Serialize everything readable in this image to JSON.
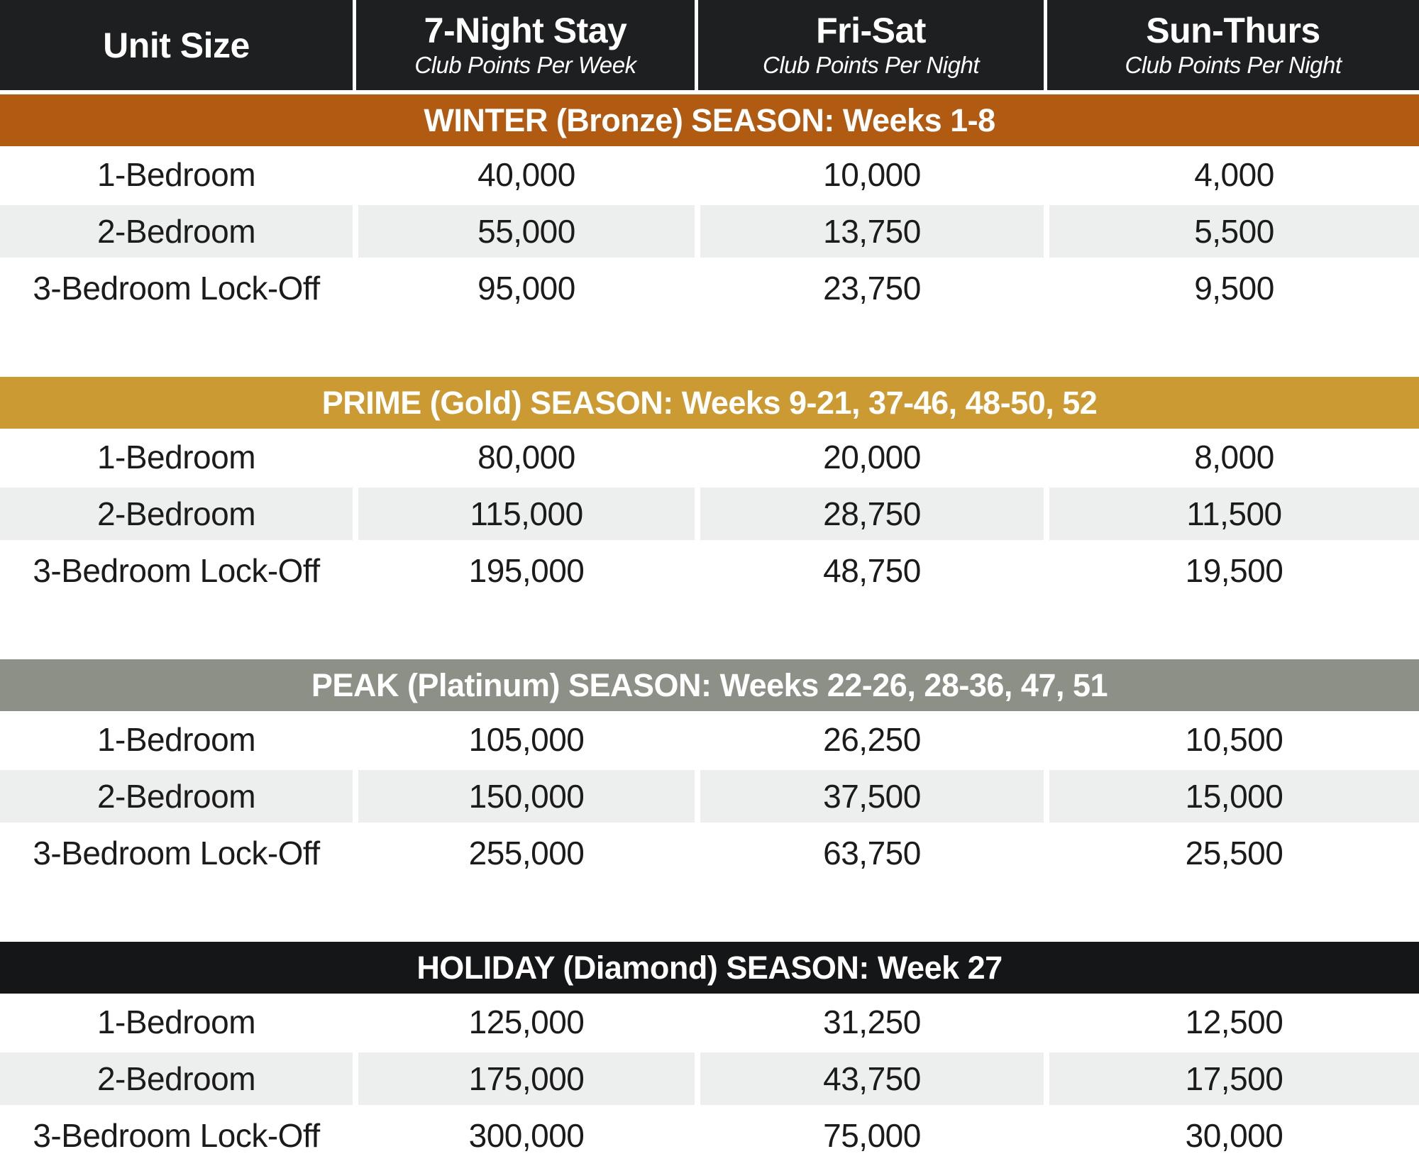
{
  "header": {
    "columns": [
      {
        "title": "Unit Size",
        "subtitle": ""
      },
      {
        "title": "7-Night Stay",
        "subtitle": "Club Points Per Week"
      },
      {
        "title": "Fri-Sat",
        "subtitle": "Club Points Per Night"
      },
      {
        "title": "Sun-Thurs",
        "subtitle": "Club Points Per Night"
      }
    ]
  },
  "seasons": [
    {
      "label": "WINTER (Bronze) SEASON: Weeks 1-8",
      "color": "#b05a12",
      "rows": [
        {
          "unit": "1-Bedroom",
          "week": "40,000",
          "fri_sat": "10,000",
          "sun_thurs": "4,000"
        },
        {
          "unit": "2-Bedroom",
          "week": "55,000",
          "fri_sat": "13,750",
          "sun_thurs": "5,500"
        },
        {
          "unit": "3-Bedroom Lock-Off",
          "week": "95,000",
          "fri_sat": "23,750",
          "sun_thurs": "9,500"
        }
      ]
    },
    {
      "label": "PRIME (Gold) SEASON: Weeks 9-21, 37-46, 48-50, 52",
      "color": "#cb9a33",
      "rows": [
        {
          "unit": "1-Bedroom",
          "week": "80,000",
          "fri_sat": "20,000",
          "sun_thurs": "8,000"
        },
        {
          "unit": "2-Bedroom",
          "week": "115,000",
          "fri_sat": "28,750",
          "sun_thurs": "11,500"
        },
        {
          "unit": "3-Bedroom Lock-Off",
          "week": "195,000",
          "fri_sat": "48,750",
          "sun_thurs": "19,500"
        }
      ]
    },
    {
      "label": "PEAK (Platinum) SEASON: Weeks 22-26, 28-36, 47, 51",
      "color": "#8d9086",
      "rows": [
        {
          "unit": "1-Bedroom",
          "week": "105,000",
          "fri_sat": "26,250",
          "sun_thurs": "10,500"
        },
        {
          "unit": "2-Bedroom",
          "week": "150,000",
          "fri_sat": "37,500",
          "sun_thurs": "15,000"
        },
        {
          "unit": "3-Bedroom Lock-Off",
          "week": "255,000",
          "fri_sat": "63,750",
          "sun_thurs": "25,500"
        }
      ]
    },
    {
      "label": "HOLIDAY (Diamond) SEASON: Week 27",
      "color": "#151617",
      "rows": [
        {
          "unit": "1-Bedroom",
          "week": "125,000",
          "fri_sat": "31,250",
          "sun_thurs": "12,500"
        },
        {
          "unit": "2-Bedroom",
          "week": "175,000",
          "fri_sat": "43,750",
          "sun_thurs": "17,500"
        },
        {
          "unit": "3-Bedroom Lock-Off",
          "week": "300,000",
          "fri_sat": "75,000",
          "sun_thurs": "30,000"
        }
      ]
    }
  ],
  "colors": {
    "header_bg": "#1d1f20",
    "zebra_row": "#edefee",
    "text": "#1b1b1b"
  }
}
